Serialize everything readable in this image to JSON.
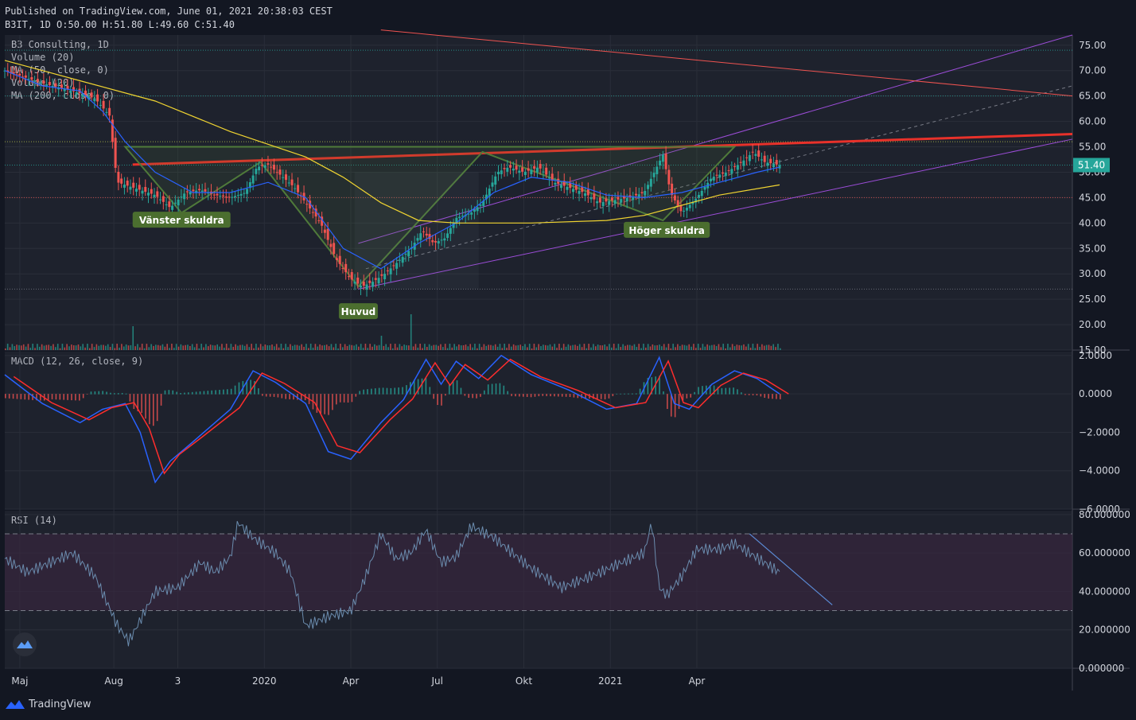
{
  "header": {
    "published": "Published on TradingView.com, June 01, 2021 20:38:03 CEST",
    "ohlc": "B3IT, 1D O:50.00 H:51.80 L:49.60 C:51.40"
  },
  "brand": {
    "name": "TradingView",
    "icon": "tradingview-logo-icon"
  },
  "colors": {
    "background": "#131722",
    "pane": "#1e222d",
    "grid": "#2a2e39",
    "up": "#26a69a",
    "down": "#ef5350",
    "ma50": "#2962ff",
    "ma200": "#f0d431",
    "red_line": "#e8312a",
    "channel": "#9c4dd8",
    "pattern": "#4f7a3a",
    "macd": "#2962ff",
    "signal": "#ff2d2d",
    "rsi": "#6b8cae",
    "rsi_band": "#3a2640",
    "label_bg": "#4b6e2f"
  },
  "chart_data": [
    {
      "type": "candlestick",
      "title": "B3 Consulting, 1D",
      "legend": [
        "B3 Consulting, 1D",
        "Volume (20)",
        "MA (50, close, 0)",
        "Volume (20)",
        "MA (200, close, 0)"
      ],
      "ylim": [
        15,
        77
      ],
      "yticks": [
        "75.00",
        "70.00",
        "65.00",
        "60.00",
        "55.00",
        "50.00",
        "45.00",
        "40.00",
        "35.00",
        "30.00",
        "25.00",
        "20.00",
        "15.00"
      ],
      "xticks": [
        "Maj",
        "Aug",
        "3",
        "2020",
        "Apr",
        "Jul",
        "Okt",
        "2021",
        "Apr"
      ],
      "last_price": "51.40",
      "annotations": [
        "Vänster skuldra",
        "Huvud",
        "Höger skuldra"
      ],
      "price_path": [
        [
          0,
          70
        ],
        [
          0.02,
          69
        ],
        [
          0.05,
          67.5
        ],
        [
          0.09,
          66
        ],
        [
          0.12,
          64.5
        ],
        [
          0.14,
          61
        ],
        [
          0.145,
          53
        ],
        [
          0.15,
          48
        ],
        [
          0.17,
          47
        ],
        [
          0.2,
          45.5
        ],
        [
          0.22,
          43
        ],
        [
          0.24,
          46
        ],
        [
          0.26,
          46.5
        ],
        [
          0.28,
          45.5
        ],
        [
          0.3,
          45
        ],
        [
          0.32,
          46
        ],
        [
          0.335,
          51
        ],
        [
          0.35,
          51.5
        ],
        [
          0.37,
          49
        ],
        [
          0.385,
          47
        ],
        [
          0.4,
          44
        ],
        [
          0.42,
          40
        ],
        [
          0.44,
          33
        ],
        [
          0.46,
          29
        ],
        [
          0.475,
          27.5
        ],
        [
          0.49,
          28.5
        ],
        [
          0.505,
          30
        ],
        [
          0.52,
          32
        ],
        [
          0.54,
          35
        ],
        [
          0.555,
          38.5
        ],
        [
          0.57,
          36
        ],
        [
          0.585,
          37
        ],
        [
          0.6,
          41
        ],
        [
          0.62,
          42
        ],
        [
          0.635,
          44
        ],
        [
          0.655,
          50
        ],
        [
          0.67,
          51
        ],
        [
          0.69,
          50
        ],
        [
          0.71,
          51
        ],
        [
          0.73,
          48
        ],
        [
          0.75,
          47
        ],
        [
          0.77,
          46
        ],
        [
          0.79,
          44
        ],
        [
          0.81,
          44.5
        ],
        [
          0.83,
          45
        ],
        [
          0.85,
          46
        ],
        [
          0.87,
          52
        ],
        [
          0.875,
          53.5
        ],
        [
          0.885,
          46
        ],
        [
          0.9,
          42
        ],
        [
          0.92,
          45
        ],
        [
          0.94,
          49
        ],
        [
          0.96,
          50
        ],
        [
          0.98,
          52
        ],
        [
          0.995,
          54
        ],
        [
          1.01,
          52
        ],
        [
          1.03,
          51.4
        ]
      ],
      "ma50_path": [
        [
          0,
          70
        ],
        [
          0.05,
          67
        ],
        [
          0.1,
          66
        ],
        [
          0.13,
          62
        ],
        [
          0.16,
          56
        ],
        [
          0.2,
          50
        ],
        [
          0.25,
          46
        ],
        [
          0.3,
          46
        ],
        [
          0.35,
          48
        ],
        [
          0.4,
          45
        ],
        [
          0.45,
          35
        ],
        [
          0.5,
          31
        ],
        [
          0.55,
          36
        ],
        [
          0.6,
          40
        ],
        [
          0.65,
          46
        ],
        [
          0.7,
          49
        ],
        [
          0.75,
          48
        ],
        [
          0.8,
          45.5
        ],
        [
          0.85,
          45
        ],
        [
          0.9,
          46
        ],
        [
          0.95,
          48
        ],
        [
          1.0,
          50
        ],
        [
          1.03,
          51
        ]
      ],
      "ma200_path": [
        [
          0,
          72
        ],
        [
          0.05,
          70
        ],
        [
          0.1,
          68
        ],
        [
          0.2,
          64
        ],
        [
          0.3,
          58
        ],
        [
          0.4,
          53
        ],
        [
          0.45,
          49
        ],
        [
          0.5,
          44
        ],
        [
          0.55,
          40.5
        ],
        [
          0.6,
          40
        ],
        [
          0.7,
          40
        ],
        [
          0.8,
          40.5
        ],
        [
          0.85,
          41.5
        ],
        [
          0.9,
          43.5
        ],
        [
          0.95,
          45.5
        ],
        [
          1.03,
          47.5
        ]
      ]
    },
    {
      "type": "line",
      "title": "MACD (12, 26, close, 9)",
      "ylim": [
        -6,
        2.2
      ],
      "yticks": [
        "2.0000",
        "0.0000",
        "−2.0000",
        "−4.0000",
        "−6.0000"
      ],
      "macd_path": [
        [
          0,
          1
        ],
        [
          0.05,
          -0.5
        ],
        [
          0.1,
          -1.5
        ],
        [
          0.13,
          -0.8
        ],
        [
          0.16,
          -0.5
        ],
        [
          0.18,
          -2
        ],
        [
          0.2,
          -4.6
        ],
        [
          0.22,
          -3.5
        ],
        [
          0.25,
          -2.5
        ],
        [
          0.3,
          -0.8
        ],
        [
          0.33,
          1.2
        ],
        [
          0.36,
          0.6
        ],
        [
          0.4,
          -0.5
        ],
        [
          0.43,
          -3
        ],
        [
          0.46,
          -3.4
        ],
        [
          0.5,
          -1.5
        ],
        [
          0.53,
          -0.3
        ],
        [
          0.56,
          1.8
        ],
        [
          0.58,
          0.5
        ],
        [
          0.6,
          1.7
        ],
        [
          0.63,
          0.8
        ],
        [
          0.66,
          2.0
        ],
        [
          0.7,
          1.0
        ],
        [
          0.75,
          0.2
        ],
        [
          0.8,
          -0.8
        ],
        [
          0.84,
          -0.5
        ],
        [
          0.87,
          1.9
        ],
        [
          0.89,
          -0.5
        ],
        [
          0.91,
          -0.8
        ],
        [
          0.94,
          0.5
        ],
        [
          0.97,
          1.2
        ],
        [
          1.0,
          0.8
        ],
        [
          1.03,
          0
        ]
      ],
      "hist_pattern": "alternating red/green bars around zero"
    },
    {
      "type": "line",
      "title": "RSI (14)",
      "ylim": [
        0,
        82
      ],
      "yticks": [
        "80.000000",
        "60.000000",
        "40.000000",
        "20.000000",
        "0.000000"
      ],
      "bands": [
        70,
        30
      ],
      "rsi_path": [
        [
          0,
          57
        ],
        [
          0.03,
          50
        ],
        [
          0.06,
          55
        ],
        [
          0.09,
          60
        ],
        [
          0.12,
          48
        ],
        [
          0.15,
          22
        ],
        [
          0.165,
          14
        ],
        [
          0.18,
          25
        ],
        [
          0.2,
          40
        ],
        [
          0.23,
          42
        ],
        [
          0.26,
          55
        ],
        [
          0.28,
          50
        ],
        [
          0.3,
          58
        ],
        [
          0.31,
          76
        ],
        [
          0.33,
          68
        ],
        [
          0.36,
          60
        ],
        [
          0.38,
          50
        ],
        [
          0.4,
          22
        ],
        [
          0.43,
          27
        ],
        [
          0.46,
          30
        ],
        [
          0.48,
          48
        ],
        [
          0.5,
          70
        ],
        [
          0.52,
          57
        ],
        [
          0.54,
          60
        ],
        [
          0.56,
          72
        ],
        [
          0.58,
          55
        ],
        [
          0.6,
          58
        ],
        [
          0.62,
          74
        ],
        [
          0.65,
          68
        ],
        [
          0.7,
          52
        ],
        [
          0.74,
          42
        ],
        [
          0.78,
          48
        ],
        [
          0.82,
          55
        ],
        [
          0.85,
          60
        ],
        [
          0.86,
          76
        ],
        [
          0.87,
          42
        ],
        [
          0.88,
          38
        ],
        [
          0.9,
          48
        ],
        [
          0.92,
          62
        ],
        [
          0.95,
          62
        ],
        [
          0.97,
          65
        ],
        [
          0.99,
          60
        ],
        [
          1.01,
          55
        ],
        [
          1.03,
          50
        ]
      ],
      "trendline": [
        [
          0.99,
          70
        ],
        [
          1.1,
          33
        ]
      ]
    }
  ]
}
